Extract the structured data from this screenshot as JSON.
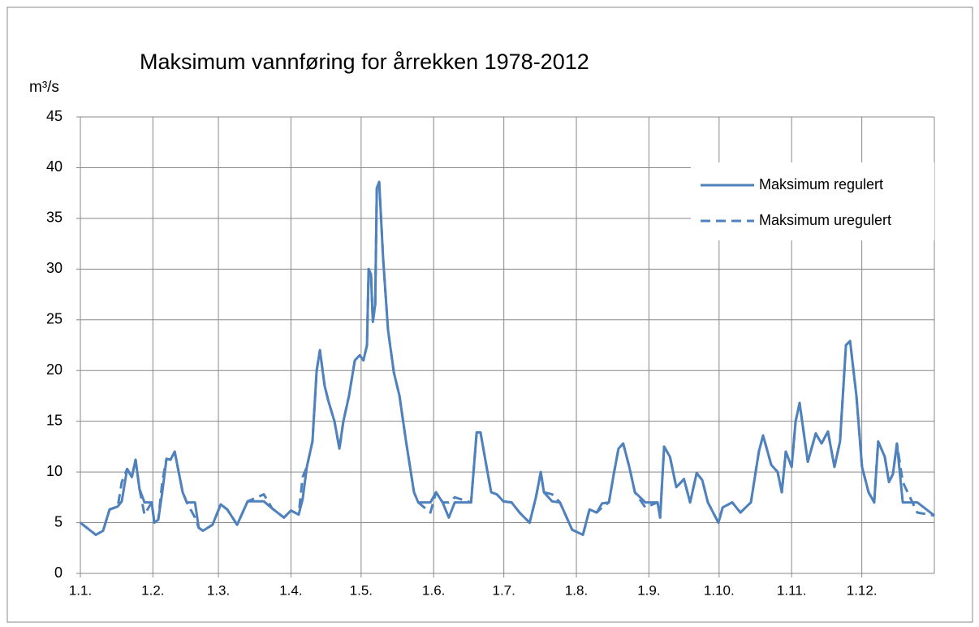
{
  "chart_data": {
    "type": "line",
    "title": "Maksimum vannføring for årrekken 1978-2012",
    "y_label": "m³/s",
    "x": [
      0,
      6.6,
      9.7,
      12.5,
      16,
      17.7,
      20,
      22,
      23.6,
      25.3,
      27.4,
      30.5,
      31.6,
      33.3,
      35,
      36.8,
      38.5,
      40.3,
      43.7,
      45.5,
      49,
      50.6,
      52.4,
      56.5,
      60,
      62.8,
      67,
      71.5,
      78.4,
      82,
      87,
      90,
      93.3,
      95,
      96.8,
      99.2,
      101,
      102.4,
      104.4,
      106,
      108.6,
      110.7,
      112.4,
      114.8,
      117.3,
      119.4,
      121,
      122.5,
      123.2,
      124.2,
      125,
      126,
      126.7,
      127.7,
      129.4,
      131.5,
      134,
      136.4,
      139.2,
      142.6,
      144.4,
      149.6,
      152,
      154.8,
      157.5,
      160,
      167,
      169.4,
      171,
      174,
      175.6,
      178,
      180.8,
      184.3,
      187.7,
      192,
      194.7,
      196.8,
      198.1,
      201.6,
      205,
      210.2,
      214.8,
      217.6,
      220.7,
      223,
      225.9,
      228,
      230,
      232,
      234.6,
      237,
      241.5,
      246.7,
      247.8,
      249.5,
      252,
      254.7,
      258,
      260.6,
      263.4,
      265.8,
      268.2,
      272.7,
      274.5,
      278.6,
      282.1,
      286.6,
      290,
      291.8,
      295.3,
      298,
      299.8,
      301.5,
      304,
      305.7,
      307.4,
      310.9,
      314.3,
      316.8,
      319.5,
      322.3,
      324.7,
      327.2,
      329,
      331.7,
      334.1,
      336.9,
      339.3,
      341,
      343.8,
      345.6,
      347.3,
      349,
      351.5,
      357.7,
      365
    ],
    "series": [
      {
        "name": "Maksimum uregulert",
        "color": "#4f81bd",
        "linestyle": "dashed",
        "values": [
          5,
          3.8,
          4.2,
          6.3,
          6.6,
          9,
          10.3,
          9.5,
          11.2,
          8.3,
          5.8,
          7,
          5,
          5.3,
          9,
          11.3,
          11.2,
          12,
          8,
          7,
          5.5,
          4.5,
          4.2,
          4.8,
          6.8,
          6.3,
          4.8,
          7.1,
          7.8,
          6.4,
          5.5,
          6.2,
          5.8,
          9.5,
          10.5,
          13,
          20,
          22,
          18.5,
          17,
          15,
          12.3,
          15,
          17.5,
          21,
          21.5,
          21,
          22.5,
          30,
          29.5,
          24.8,
          26.5,
          38,
          38.6,
          31,
          24,
          19.8,
          17.5,
          13,
          8,
          7,
          6,
          8,
          7,
          7,
          7.5,
          7,
          13.9,
          13.9,
          10,
          8,
          7.8,
          7.1,
          7,
          6,
          5,
          7.5,
          10,
          8,
          7.8,
          7,
          4.3,
          3.8,
          6.3,
          6,
          6.5,
          7,
          9.8,
          12.3,
          12.8,
          10.5,
          8,
          6.5,
          7,
          5.5,
          12.5,
          11.5,
          8.5,
          9.3,
          7,
          9.9,
          9.2,
          7,
          5,
          6.5,
          7,
          6,
          7,
          12,
          13.6,
          10.7,
          10,
          8,
          12,
          10.5,
          15,
          16.8,
          11,
          13.8,
          12.8,
          14,
          10.5,
          13,
          22.5,
          22.9,
          17.5,
          10.5,
          8,
          7,
          13,
          11.5,
          9,
          9.8,
          12.8,
          9,
          6,
          5.7
        ]
      },
      {
        "name": "Maksimum regulert",
        "color": "#4f81bd",
        "linestyle": "solid",
        "values": [
          5,
          3.8,
          4.2,
          6.3,
          6.6,
          7.1,
          10.3,
          9.5,
          11.2,
          8.3,
          7,
          7,
          5,
          5.3,
          8,
          11.3,
          11.2,
          12,
          8,
          7,
          7,
          4.5,
          4.2,
          4.8,
          6.8,
          6.3,
          4.8,
          7.1,
          7.1,
          6.4,
          5.5,
          6.2,
          5.8,
          7.3,
          10.5,
          13,
          20,
          22,
          18.5,
          17,
          15,
          12.3,
          15,
          17.5,
          21,
          21.5,
          21,
          22.5,
          30,
          29.5,
          24.8,
          26.5,
          38,
          38.6,
          31,
          24,
          19.8,
          17.5,
          13,
          8,
          7,
          7,
          8,
          7,
          5.5,
          7,
          7,
          13.9,
          13.9,
          10,
          8,
          7.8,
          7.1,
          7,
          6,
          5,
          7.5,
          10,
          8,
          7.1,
          7,
          4.3,
          3.8,
          6.3,
          6,
          6.9,
          7,
          9.8,
          12.3,
          12.8,
          10.5,
          8,
          7,
          7,
          5.5,
          12.5,
          11.5,
          8.5,
          9.3,
          7,
          9.9,
          9.2,
          7,
          5,
          6.5,
          7,
          6,
          7,
          12,
          13.6,
          10.7,
          10,
          8,
          12,
          10.5,
          15,
          16.8,
          11,
          13.8,
          12.8,
          14,
          10.5,
          13,
          22.5,
          22.9,
          17.5,
          10.5,
          8,
          7,
          13,
          11.5,
          9,
          9.8,
          12.8,
          7,
          7,
          5.7
        ]
      }
    ],
    "xlim": [
      0,
      365
    ],
    "xticks": [
      {
        "value": 0,
        "label": "1.1."
      },
      {
        "value": 31,
        "label": "1.2."
      },
      {
        "value": 59,
        "label": "1.3."
      },
      {
        "value": 90,
        "label": "1.4."
      },
      {
        "value": 120,
        "label": "1.5."
      },
      {
        "value": 151,
        "label": "1.6."
      },
      {
        "value": 181,
        "label": "1.7."
      },
      {
        "value": 212,
        "label": "1.8."
      },
      {
        "value": 243,
        "label": "1.9."
      },
      {
        "value": 273,
        "label": "1.10."
      },
      {
        "value": 304,
        "label": "1.11."
      },
      {
        "value": 334,
        "label": "1.12."
      }
    ],
    "ylim": [
      0,
      45
    ],
    "yticks": [
      0,
      5,
      10,
      15,
      20,
      25,
      30,
      35,
      40,
      45
    ],
    "grid": true,
    "legend": "upper right"
  }
}
